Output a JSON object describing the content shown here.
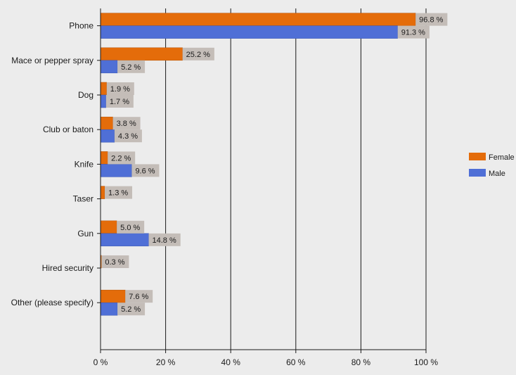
{
  "chart_data": {
    "type": "bar",
    "orientation": "horizontal",
    "categories": [
      "Phone",
      "Mace or pepper spray",
      "Dog",
      "Club or baton",
      "Knife",
      "Taser",
      "Gun",
      "Hired security",
      "Other (please specify)"
    ],
    "series": [
      {
        "name": "Female",
        "color": "#e46c0a",
        "values": [
          96.8,
          25.2,
          1.9,
          3.8,
          2.2,
          1.3,
          5.0,
          0.3,
          7.6
        ],
        "labels": [
          "96.8 %",
          "25.2 %",
          "1.9 %",
          "3.8 %",
          "2.2 %",
          "1.3 %",
          "5.0 %",
          "0.3 %",
          "7.6 %"
        ]
      },
      {
        "name": "Male",
        "color": "#4f6fd6",
        "values": [
          91.3,
          5.2,
          1.7,
          4.3,
          9.6,
          null,
          14.8,
          null,
          5.2
        ],
        "labels": [
          "91.3 %",
          "5.2 %",
          "1.7 %",
          "4.3 %",
          "9.6 %",
          null,
          "14.8 %",
          null,
          "5.2 %"
        ]
      }
    ],
    "xlim": [
      0,
      100
    ],
    "xticks": [
      0,
      20,
      40,
      60,
      80,
      100
    ],
    "xtick_labels": [
      "0 %",
      "20 %",
      "40 %",
      "60 %",
      "80 %",
      "100 %"
    ],
    "grid": true,
    "legend": "right"
  }
}
